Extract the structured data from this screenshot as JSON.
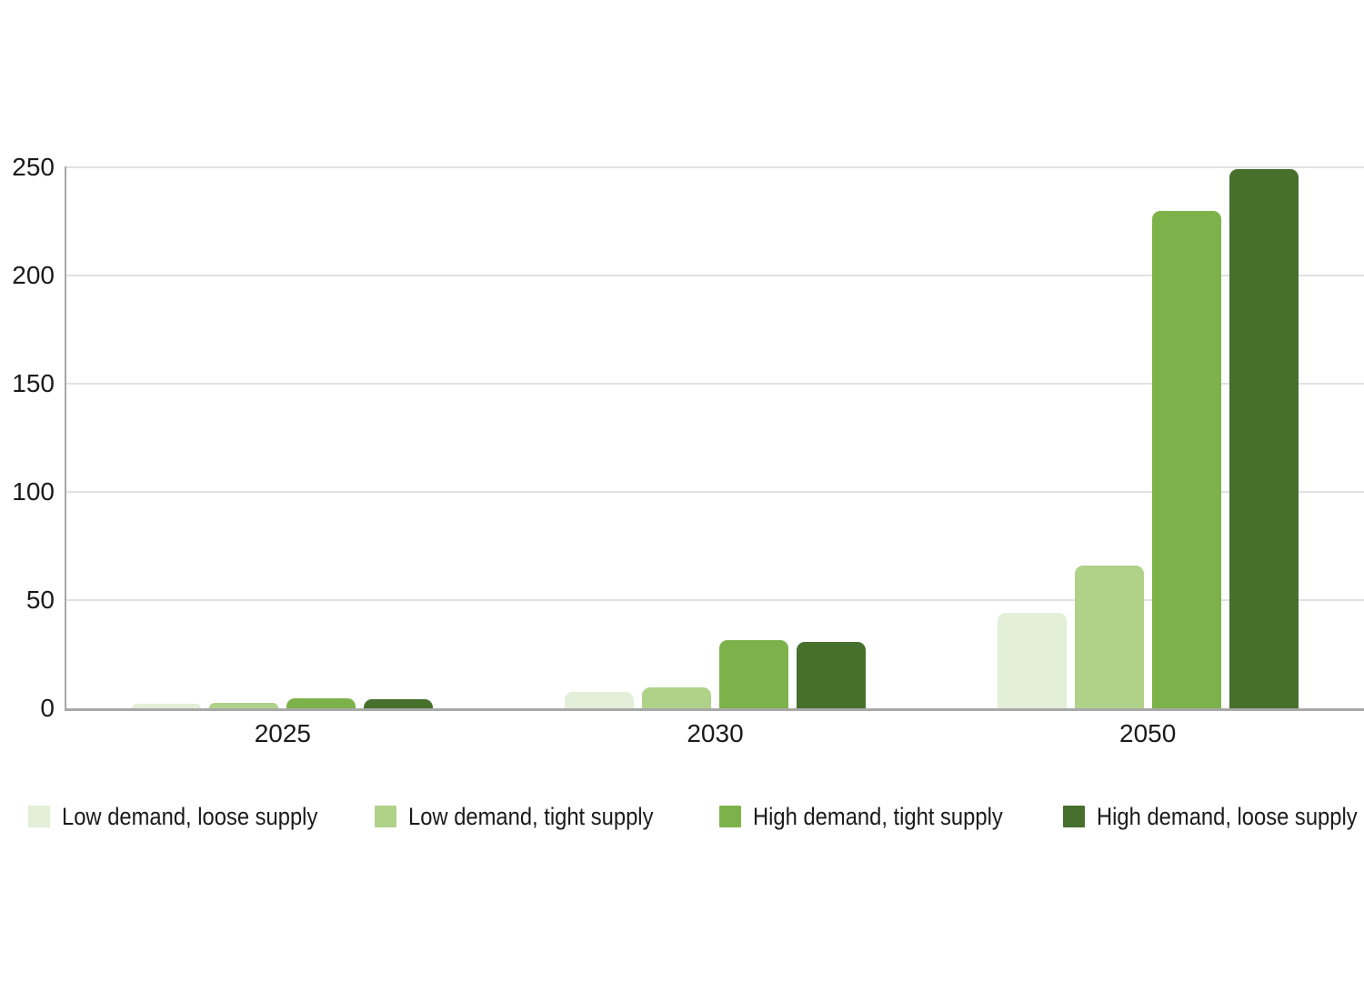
{
  "chart_data": {
    "type": "bar",
    "title": "",
    "xlabel": "",
    "ylabel": "",
    "categories": [
      "2025",
      "2030",
      "2050"
    ],
    "series": [
      {
        "name": "Low demand, loose supply",
        "color": "#e3efd8",
        "values": [
          2,
          7.5,
          44
        ]
      },
      {
        "name": "Low demand, tight supply",
        "color": "#b0d288",
        "values": [
          2.5,
          9.5,
          66
        ]
      },
      {
        "name": "High demand, tight supply",
        "color": "#7db24b",
        "values": [
          4.5,
          31.5,
          230
        ]
      },
      {
        "name": "High demand, loose supply",
        "color": "#46702c",
        "values": [
          4,
          30.5,
          249
        ]
      }
    ],
    "ylim": [
      0,
      250
    ],
    "yticks": [
      0,
      50,
      100,
      150,
      200,
      250
    ],
    "grid": true,
    "legend_position": "bottom"
  },
  "colors": {
    "background": "#ffffff",
    "gridline": "#e2e2e2",
    "axis": "#a8a8a8",
    "text": "#1a1a1a"
  }
}
